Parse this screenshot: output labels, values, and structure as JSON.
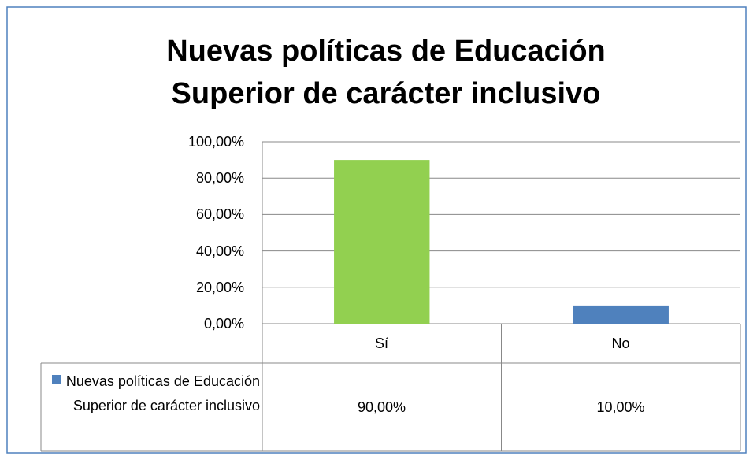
{
  "chart_data": {
    "type": "bar",
    "title": "Nuevas políticas de Educación Superior de carácter inclusivo",
    "categories": [
      "Sí",
      "No"
    ],
    "series": [
      {
        "name": "Nuevas políticas de Educación Superior de carácter inclusivo",
        "color": "#4f81bd",
        "colors": [
          "#92d050",
          "#4f81bd"
        ],
        "values": [
          90,
          10
        ],
        "value_labels": [
          "90,00%",
          "10,00%"
        ]
      }
    ],
    "ylim": [
      0,
      100
    ],
    "yticks": [
      {
        "value": 0,
        "label": "0,00%"
      },
      {
        "value": 20,
        "label": "20,00%"
      },
      {
        "value": 40,
        "label": "40,00%"
      },
      {
        "value": 60,
        "label": "60,00%"
      },
      {
        "value": 80,
        "label": "80,00%"
      },
      {
        "value": 100,
        "label": "100,00%"
      }
    ],
    "grid": true,
    "data_table": true
  }
}
